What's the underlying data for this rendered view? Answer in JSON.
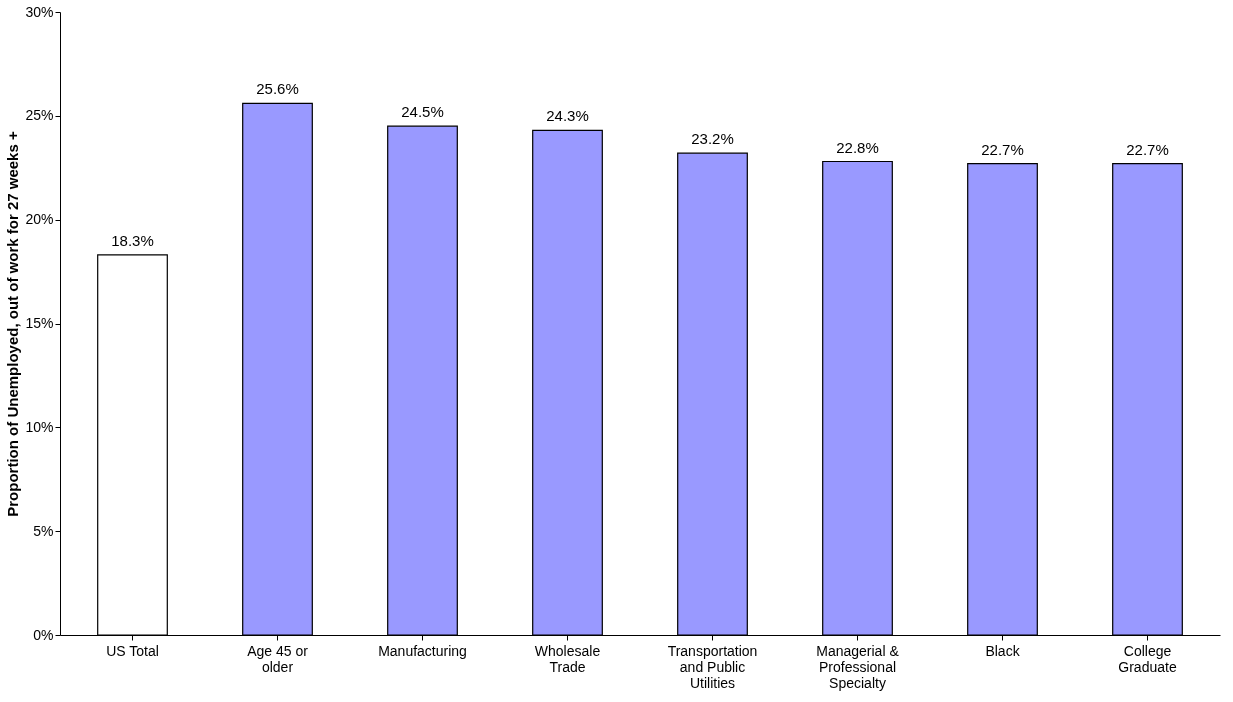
{
  "chart_data": {
    "type": "bar",
    "ylabel": "Proportion of Unemployed, out of work for 27 weeks +",
    "categories": [
      "US Total",
      "Age 45 or older",
      "Manufacturing",
      "Wholesale Trade",
      "Transportation and Public Utilities",
      "Managerial & Professional Specialty",
      "Black",
      "College Graduate"
    ],
    "values": [
      18.3,
      25.6,
      24.5,
      24.3,
      23.2,
      22.8,
      22.7,
      22.7
    ],
    "value_labels": [
      "18.3%",
      "25.6%",
      "24.5%",
      "24.3%",
      "23.2%",
      "22.8%",
      "22.7%",
      "22.7%"
    ],
    "colors": [
      "#ffffff",
      "#9999ff",
      "#9999ff",
      "#9999ff",
      "#9999ff",
      "#9999ff",
      "#9999ff",
      "#9999ff"
    ],
    "ylim": [
      0,
      30
    ],
    "yticks": [
      {
        "value": 0,
        "label": "0%"
      },
      {
        "value": 5,
        "label": "5%"
      },
      {
        "value": 10,
        "label": "10%"
      },
      {
        "value": 15,
        "label": "15%"
      },
      {
        "value": 20,
        "label": "20%"
      },
      {
        "value": 25,
        "label": "25%"
      },
      {
        "value": 30,
        "label": "30%"
      }
    ],
    "grid": false
  }
}
